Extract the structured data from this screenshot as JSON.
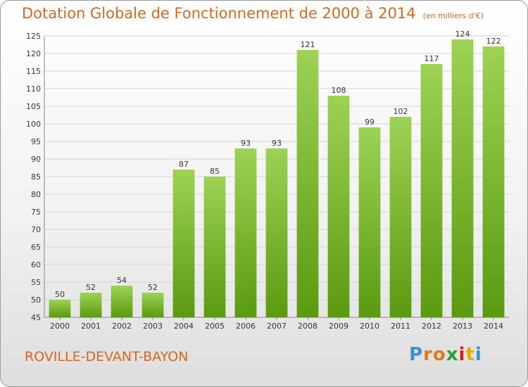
{
  "chart_data": {
    "type": "bar",
    "title": "Dotation Globale de Fonctionnement de 2000 à 2014",
    "subtitle": "(en milliers d'€)",
    "categories": [
      "2000",
      "2001",
      "2002",
      "2003",
      "2004",
      "2005",
      "2006",
      "2007",
      "2008",
      "2009",
      "2010",
      "2011",
      "2012",
      "2013",
      "2014"
    ],
    "values": [
      50,
      52,
      54,
      52,
      87,
      85,
      93,
      93,
      121,
      108,
      99,
      102,
      117,
      124,
      122
    ],
    "ylim": [
      45,
      125
    ],
    "yticks": [
      45,
      50,
      55,
      60,
      65,
      70,
      75,
      80,
      85,
      90,
      95,
      100,
      105,
      110,
      115,
      120,
      125
    ],
    "grid": true,
    "bar_color_top": "#9dd254",
    "bar_color_bottom": "#5a9a10",
    "xlabel": "",
    "ylabel": ""
  },
  "footer": {
    "commune": "ROVILLE-DEVANT-BAYON",
    "logo_letters": [
      {
        "char": "P",
        "color": "#3a8fd0"
      },
      {
        "char": "r",
        "color": "#e07a1a"
      },
      {
        "char": "o",
        "color": "#e07a1a"
      },
      {
        "char": "x",
        "color": "#2aa03a"
      },
      {
        "char": "i",
        "color": "#d42020"
      },
      {
        "char": "t",
        "color": "#e0b000"
      },
      {
        "char": "i",
        "color": "#3a8fd0"
      }
    ]
  }
}
